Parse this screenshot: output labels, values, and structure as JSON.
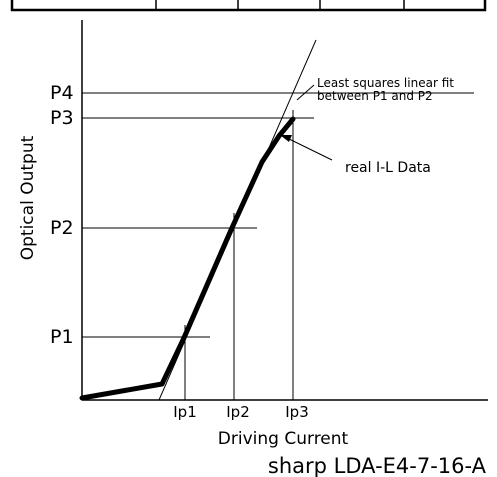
{
  "diagram": {
    "y_axis_label": "Optical Output",
    "x_axis_label": "Driving Current",
    "caption": "sharp LDA-E4-7-16-A",
    "power_levels": [
      "P4",
      "P3",
      "P2",
      "P1"
    ],
    "current_levels": [
      "Ip1",
      "Ip2",
      "Ip3"
    ],
    "annotations": {
      "fit_line_line1": "Least squares linear fit",
      "fit_line_line2": "between P1 and P2",
      "real_data": "real I-L Data"
    },
    "colors": {
      "line": "#000000",
      "background": "#ffffff"
    }
  }
}
